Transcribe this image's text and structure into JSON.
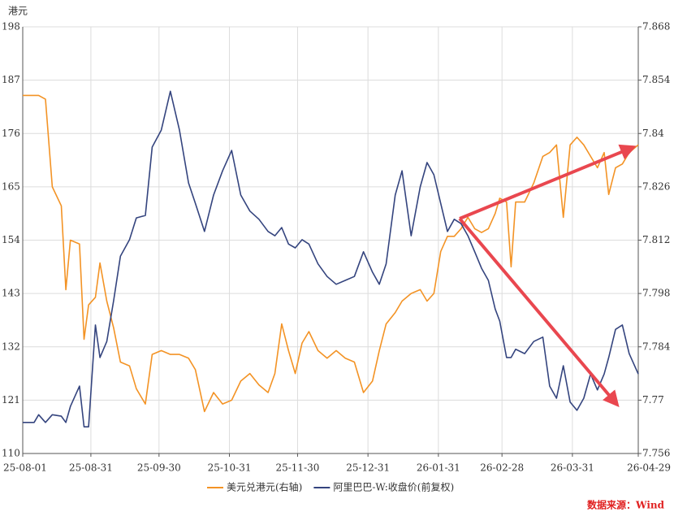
{
  "chart_data": {
    "type": "line",
    "y_axis_label": "港元",
    "source": "数据来源：Wind",
    "x": [
      "25-08-01",
      "25-08-06",
      "25-08-08",
      "25-08-11",
      "25-08-14",
      "25-08-18",
      "25-08-20",
      "25-08-22",
      "25-08-26",
      "25-08-28",
      "25-08-30",
      "25-09-02",
      "25-09-04",
      "25-09-07",
      "25-09-10",
      "25-09-13",
      "25-09-17",
      "25-09-20",
      "25-09-24",
      "25-09-27",
      "25-10-01",
      "25-10-05",
      "25-10-09",
      "25-10-13",
      "25-10-16",
      "25-10-20",
      "25-10-24",
      "25-10-28",
      "25-11-01",
      "25-11-05",
      "25-11-09",
      "25-11-13",
      "25-11-17",
      "25-11-20",
      "25-11-23",
      "25-11-26",
      "25-11-29",
      "25-12-02",
      "25-12-05",
      "25-12-09",
      "25-12-13",
      "25-12-17",
      "25-12-21",
      "25-12-25",
      "25-12-29",
      "26-01-02",
      "26-01-05",
      "26-01-08",
      "26-01-12",
      "26-01-15",
      "26-01-19",
      "26-01-23",
      "26-01-26",
      "26-01-29",
      "26-02-01",
      "26-02-04",
      "26-02-07",
      "26-02-10",
      "26-02-13",
      "26-02-16",
      "26-02-19",
      "26-02-22",
      "26-02-25",
      "26-02-27",
      "26-03-02",
      "26-03-04",
      "26-03-06",
      "26-03-10",
      "26-03-14",
      "26-03-18",
      "26-03-21",
      "26-03-24",
      "26-03-27",
      "26-03-30",
      "26-04-02",
      "26-04-05",
      "26-04-08",
      "26-04-11",
      "26-04-14",
      "26-04-16",
      "26-04-19",
      "26-04-22",
      "26-04-25",
      "26-04-29"
    ],
    "series": [
      {
        "name": "美元兑港元(右轴)",
        "color": "#f39325",
        "axis": "y2",
        "values": [
          7.85,
          7.85,
          7.85,
          7.849,
          7.826,
          7.821,
          7.799,
          7.812,
          7.811,
          7.786,
          7.795,
          7.797,
          7.806,
          7.796,
          7.789,
          7.78,
          7.779,
          7.773,
          7.769,
          7.782,
          7.783,
          7.782,
          7.782,
          7.781,
          7.778,
          7.767,
          7.772,
          7.769,
          7.77,
          7.775,
          7.777,
          7.774,
          7.772,
          7.777,
          7.79,
          7.783,
          7.777,
          7.785,
          7.788,
          7.783,
          7.781,
          7.783,
          7.781,
          7.78,
          7.772,
          7.775,
          7.783,
          7.79,
          7.793,
          7.796,
          7.798,
          7.799,
          7.796,
          7.798,
          7.809,
          7.813,
          7.813,
          7.815,
          7.818,
          7.815,
          7.814,
          7.815,
          7.819,
          7.823,
          7.822,
          7.805,
          7.822,
          7.822,
          7.827,
          7.834,
          7.835,
          7.837,
          7.818,
          7.837,
          7.839,
          7.837,
          7.834,
          7.831,
          7.835,
          7.824,
          7.831,
          7.832,
          7.835,
          7.837
        ]
      },
      {
        "name": "阿里巴巴-W:收盘价(前复权)",
        "color": "#34447e",
        "values": [
          116.4,
          116.4,
          118.0,
          116.4,
          118.0,
          117.7,
          116.4,
          119.7,
          123.9,
          115.5,
          115.5,
          136.5,
          129.8,
          133.1,
          141.5,
          150.7,
          154.1,
          158.6,
          159.1,
          173.2,
          176.7,
          184.7,
          176.7,
          165.8,
          161.6,
          155.8,
          163.3,
          168.3,
          172.5,
          163.3,
          160.0,
          158.3,
          155.8,
          154.9,
          156.6,
          153.2,
          152.4,
          154.1,
          153.2,
          149.1,
          146.5,
          144.9,
          145.7,
          146.5,
          151.6,
          147.4,
          144.9,
          149.1,
          163.3,
          168.3,
          154.9,
          165.0,
          170.0,
          167.5,
          161.6,
          155.8,
          158.3,
          157.4,
          154.9,
          151.6,
          148.2,
          145.7,
          139.8,
          137.3,
          129.8,
          129.8,
          131.5,
          130.6,
          133.1,
          134.0,
          123.9,
          121.4,
          128.1,
          120.6,
          118.9,
          121.4,
          126.4,
          123.1,
          126.4,
          129.8,
          135.6,
          136.5,
          130.6,
          126.4
        ]
      }
    ],
    "xlim": [
      "25-08-01",
      "26-04-29"
    ],
    "xticks": [
      "25-08-01",
      "25-08-31",
      "25-09-30",
      "25-10-31",
      "25-11-30",
      "25-12-31",
      "26-01-31",
      "26-02-28",
      "26-03-31",
      "26-04-29"
    ],
    "ylim": [
      110,
      198
    ],
    "yticks": [
      110,
      121,
      132,
      143,
      154,
      165,
      176,
      187,
      198
    ],
    "y2lim": [
      7.756,
      7.868
    ],
    "y2ticks": [
      7.756,
      7.77,
      7.784,
      7.798,
      7.812,
      7.826,
      7.84,
      7.854,
      7.868
    ],
    "grid": true,
    "legend": "bottom"
  }
}
